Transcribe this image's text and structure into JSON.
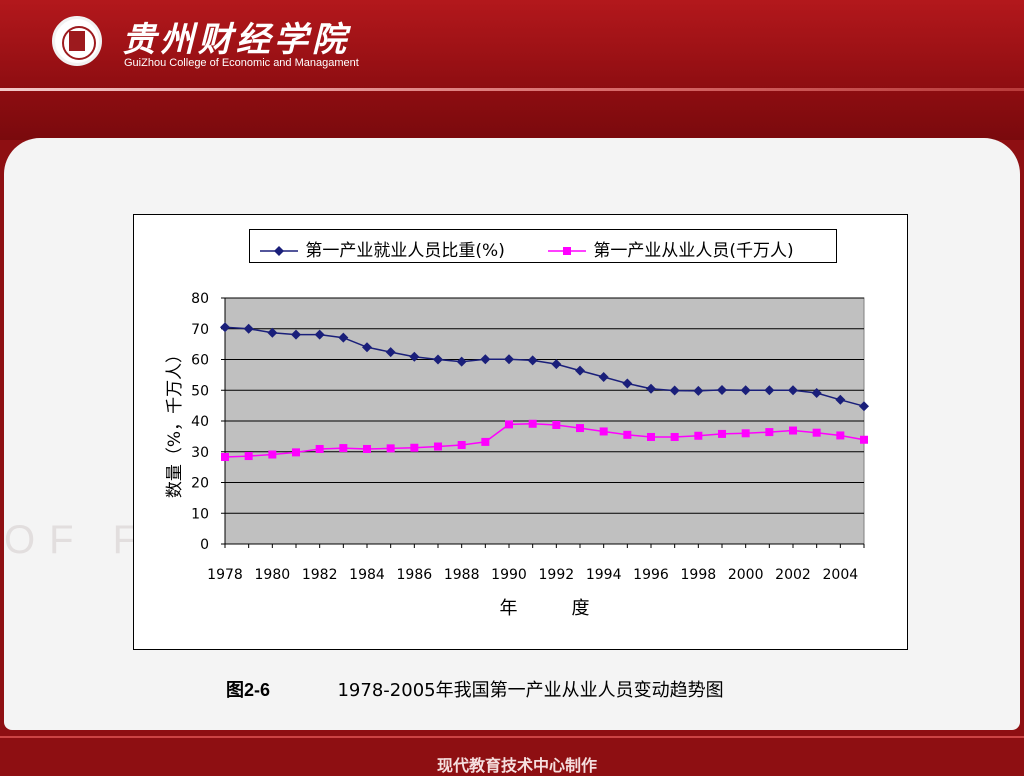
{
  "header": {
    "logo_cn": "贵州财经学院",
    "logo_en": "GuiZhou College of Economic and Managament"
  },
  "watermark": "OF FIN",
  "chart_data": {
    "type": "line",
    "x": [
      1978,
      1979,
      1980,
      1981,
      1982,
      1983,
      1984,
      1985,
      1986,
      1987,
      1988,
      1989,
      1990,
      1991,
      1992,
      1993,
      1994,
      1995,
      1996,
      1997,
      1998,
      1999,
      2000,
      2001,
      2002,
      2003,
      2004,
      2005
    ],
    "x_ticks": [
      "1978",
      "1980",
      "1982",
      "1984",
      "1986",
      "1988",
      "1990",
      "1992",
      "1994",
      "1996",
      "1998",
      "2000",
      "2002",
      "2004"
    ],
    "y_ticks": [
      "0",
      "10",
      "20",
      "30",
      "40",
      "50",
      "60",
      "70",
      "80"
    ],
    "ylim": [
      0,
      80
    ],
    "xlabel": "年　　　度",
    "ylabel": "数量（%，千万人）",
    "grid": true,
    "legend_position": "top",
    "series": [
      {
        "name": "第一产业就业人员比重(%)",
        "color": "#1a1f7a",
        "marker": "diamond",
        "values": [
          70.5,
          70.0,
          68.7,
          68.1,
          68.1,
          67.1,
          64.0,
          62.4,
          60.9,
          60.0,
          59.3,
          60.1,
          60.1,
          59.7,
          58.5,
          56.4,
          54.3,
          52.2,
          50.5,
          49.9,
          49.8,
          50.1,
          50.0,
          50.0,
          50.0,
          49.1,
          46.9,
          44.8
        ]
      },
      {
        "name": "第一产业从业人员(千万人)",
        "color": "#ff00ff",
        "marker": "square",
        "values": [
          28.3,
          28.6,
          29.1,
          29.8,
          30.9,
          31.2,
          30.9,
          31.1,
          31.3,
          31.7,
          32.2,
          33.2,
          38.9,
          39.1,
          38.7,
          37.7,
          36.6,
          35.5,
          34.8,
          34.8,
          35.2,
          35.8,
          36.0,
          36.4,
          36.9,
          36.2,
          35.3,
          33.9
        ]
      }
    ]
  },
  "caption": {
    "label": "图2-6",
    "text": "1978-2005年我国第一产业从业人员变动趋势图"
  },
  "footer": "现代教育技术中心制作"
}
